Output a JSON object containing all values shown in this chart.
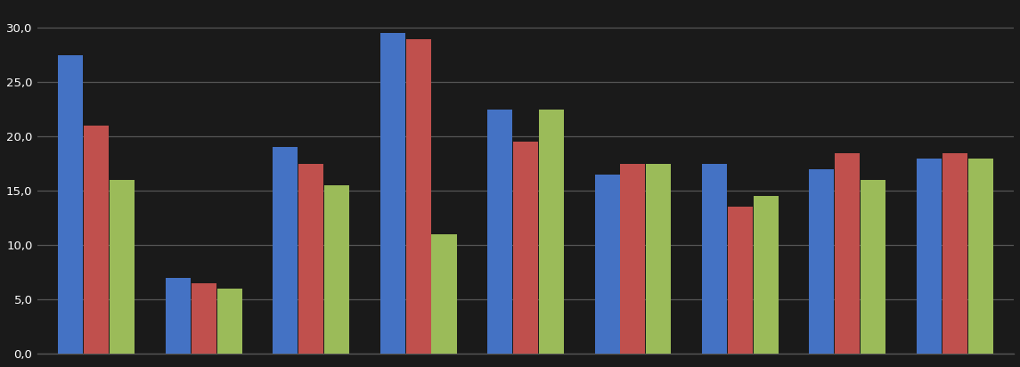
{
  "n_groups": 9,
  "series": {
    "blue": [
      27.5,
      7.0,
      19.0,
      29.5,
      22.5,
      16.5,
      17.5,
      17.0,
      18.0
    ],
    "red": [
      21.0,
      6.5,
      17.5,
      29.0,
      19.5,
      17.5,
      13.5,
      18.5,
      18.5
    ],
    "green": [
      16.0,
      6.0,
      15.5,
      11.0,
      22.5,
      17.5,
      14.5,
      16.0,
      18.0
    ]
  },
  "ylim": [
    0,
    32
  ],
  "yticks": [
    0,
    5,
    10,
    15,
    20,
    25,
    30
  ],
  "bar_colors": {
    "blue": "#4472C4",
    "red": "#C0504D",
    "green": "#9BBB59"
  },
  "background_color": "#1a1a1a",
  "grid_color": "#555555",
  "bar_width": 0.24
}
